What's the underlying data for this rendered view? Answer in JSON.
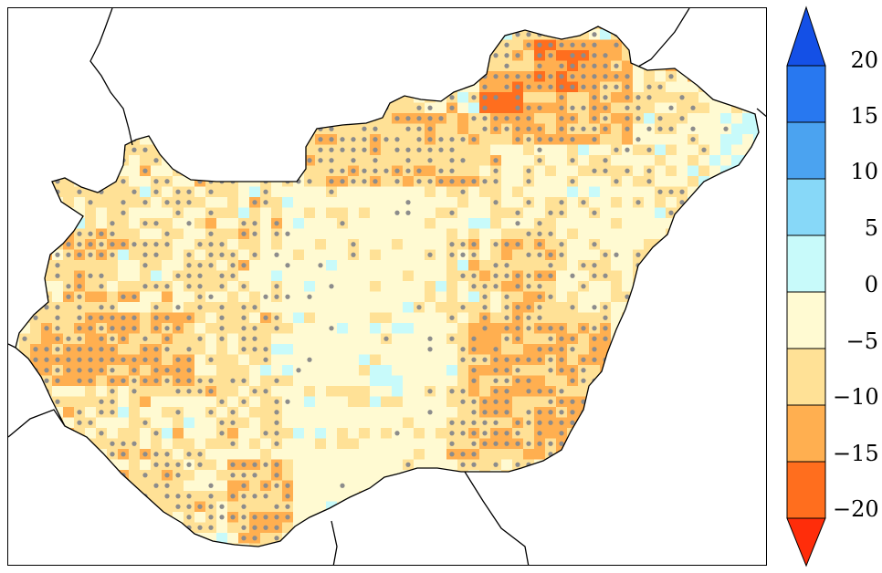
{
  "map": {
    "region": "hungary-grid",
    "has_stipple": true,
    "border_color": "#000000",
    "stipple_color": "#8c8c8c"
  },
  "colorbar": {
    "ticks": [
      "20",
      "15",
      "10",
      "5",
      "0",
      "−5",
      "−10",
      "−15",
      "−20"
    ],
    "classes": [
      {
        "range": "above 20",
        "color": "#1450e6"
      },
      {
        "range": "15 to 20",
        "color": "#2878f0"
      },
      {
        "range": "10 to 15",
        "color": "#4ba3f0"
      },
      {
        "range": "5 to 10",
        "color": "#87d8f8"
      },
      {
        "range": "0 to 5",
        "color": "#c8fafa"
      },
      {
        "range": "-5 to 0",
        "color": "#fffad2"
      },
      {
        "range": "-10 to -5",
        "color": "#ffe196"
      },
      {
        "range": "-15 to -10",
        "color": "#ffaf50"
      },
      {
        "range": "-20 to -15",
        "color": "#ff6e1e"
      },
      {
        "range": "below -20",
        "color": "#ff2d0a"
      }
    ]
  }
}
